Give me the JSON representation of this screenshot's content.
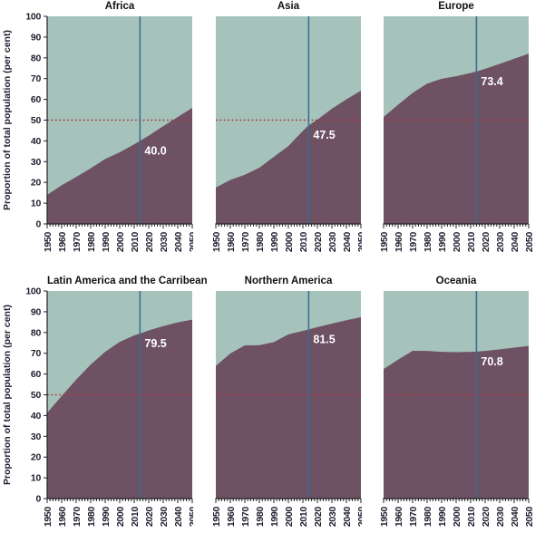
{
  "figure": {
    "y_axis_title": "Proportion of total population (per cent)",
    "y_ticks": [
      0,
      10,
      20,
      30,
      40,
      50,
      60,
      70,
      80,
      90,
      100
    ],
    "x_tick_step": 10,
    "x_minor_step": 2,
    "colors": {
      "urban_area": "#6e5163",
      "rural_area": "#a5c3ba",
      "fifty_percent_line": "#a93a3f",
      "reference_year_line": "#366b94",
      "axis": "#222222",
      "tick_label": "#1e1d2e",
      "title": "#111111",
      "value_label": "#ffffff"
    }
  },
  "chart_data": [
    {
      "type": "area",
      "title": "Africa",
      "x": [
        1950,
        1960,
        1970,
        1980,
        1990,
        2000,
        2010,
        2014,
        2020,
        2030,
        2040,
        2050
      ],
      "values": [
        14.0,
        18.6,
        22.6,
        26.8,
        31.3,
        34.5,
        38.3,
        40.0,
        42.5,
        47.1,
        51.5,
        55.9
      ],
      "annotation_x": 2014,
      "annotation_label": "40.0",
      "hline_y": 50,
      "xlim": [
        1950,
        2050
      ],
      "ylim": [
        0,
        100
      ]
    },
    {
      "type": "area",
      "title": "Asia",
      "x": [
        1950,
        1960,
        1970,
        1980,
        1990,
        2000,
        2010,
        2014,
        2020,
        2030,
        2040,
        2050
      ],
      "values": [
        17.5,
        21.2,
        23.7,
        27.1,
        32.3,
        37.5,
        44.8,
        47.5,
        50.2,
        55.5,
        60.0,
        64.2
      ],
      "annotation_x": 2014,
      "annotation_label": "47.5",
      "hline_y": 50,
      "xlim": [
        1950,
        2050
      ],
      "ylim": [
        0,
        100
      ]
    },
    {
      "type": "area",
      "title": "Europe",
      "x": [
        1950,
        1960,
        1970,
        1980,
        1990,
        2000,
        2010,
        2014,
        2020,
        2030,
        2040,
        2050
      ],
      "values": [
        51.5,
        57.4,
        63.1,
        67.6,
        69.9,
        71.1,
        72.7,
        73.4,
        74.7,
        77.1,
        79.6,
        82.0
      ],
      "annotation_x": 2014,
      "annotation_label": "73.4",
      "hline_y": 50,
      "xlim": [
        1950,
        2050
      ],
      "ylim": [
        0,
        100
      ]
    },
    {
      "type": "area",
      "title": "Latin America and the Carribean",
      "x": [
        1950,
        1960,
        1970,
        1980,
        1990,
        2000,
        2010,
        2014,
        2020,
        2030,
        2040,
        2050
      ],
      "values": [
        41.3,
        49.4,
        57.3,
        64.6,
        70.7,
        75.5,
        78.6,
        79.5,
        81.0,
        83.1,
        84.9,
        86.2
      ],
      "annotation_x": 2014,
      "annotation_label": "79.5",
      "hline_y": 50,
      "xlim": [
        1950,
        2050
      ],
      "ylim": [
        0,
        100
      ]
    },
    {
      "type": "area",
      "title": "Northern America",
      "x": [
        1950,
        1960,
        1970,
        1980,
        1990,
        2000,
        2010,
        2014,
        2020,
        2030,
        2040,
        2050
      ],
      "values": [
        63.9,
        69.9,
        73.8,
        73.9,
        75.4,
        79.1,
        80.8,
        81.5,
        82.6,
        84.3,
        85.9,
        87.4
      ],
      "annotation_x": 2014,
      "annotation_label": "81.5",
      "hline_y": 50,
      "xlim": [
        1950,
        2050
      ],
      "ylim": [
        0,
        100
      ]
    },
    {
      "type": "area",
      "title": "Oceania",
      "x": [
        1950,
        1960,
        1970,
        1980,
        1990,
        2000,
        2010,
        2014,
        2020,
        2030,
        2040,
        2050
      ],
      "values": [
        62.4,
        66.9,
        71.2,
        71.1,
        70.7,
        70.5,
        70.7,
        70.8,
        71.1,
        71.9,
        72.7,
        73.5
      ],
      "annotation_x": 2014,
      "annotation_label": "70.8",
      "hline_y": 50,
      "xlim": [
        1950,
        2050
      ],
      "ylim": [
        0,
        100
      ]
    }
  ]
}
